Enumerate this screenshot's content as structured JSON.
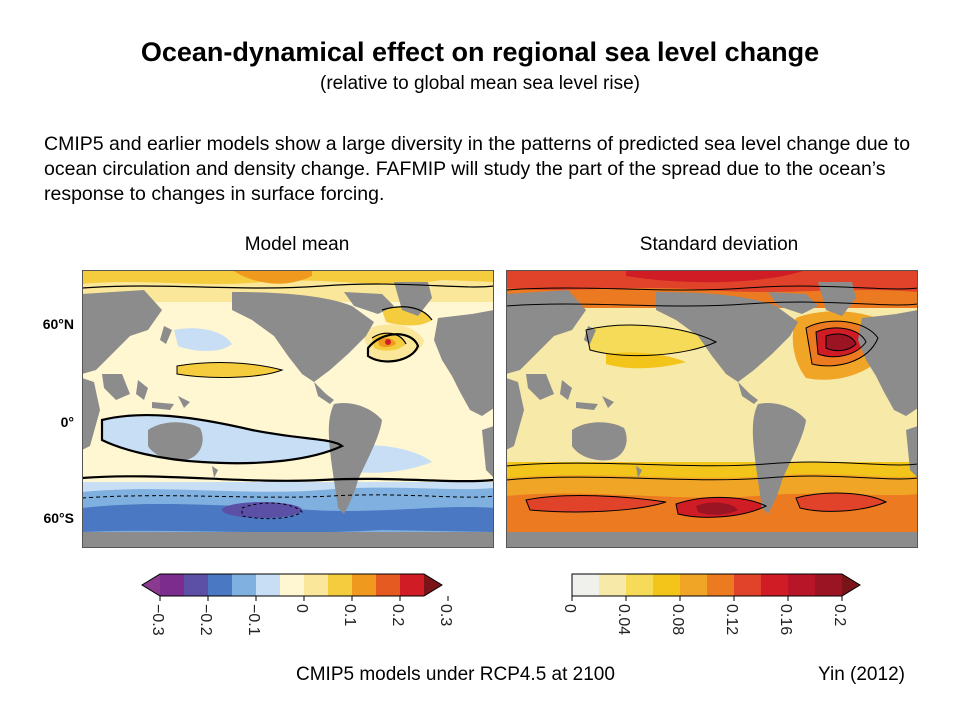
{
  "title": "Ocean-dynamical effect on regional sea level change",
  "subtitle": "(relative to global mean sea level rise)",
  "description": "CMIP5 and earlier models show a large diversity in the patterns of predicted sea level change due to ocean circulation and density change. FAFMIP will study the part of the spread due to the ocean’s response to changes in surface forcing.",
  "panels": {
    "left": {
      "label": "Model mean"
    },
    "right": {
      "label": "Standard deviation"
    }
  },
  "latitude_labels": [
    "60°N",
    "0°",
    "60°S"
  ],
  "colorbars": {
    "mean": {
      "ticks": [
        "−0.3",
        "−0.2",
        "−0.1",
        "0",
        "0.1",
        "0.2",
        "0.3"
      ],
      "colors": [
        "#7b2c8c",
        "#5b4fa6",
        "#4a78c2",
        "#7fb0e0",
        "#c7def5",
        "#fff6d2",
        "#fbe79a",
        "#f5cc3e",
        "#ef9a1e",
        "#e45a20",
        "#d01c24"
      ],
      "under_color": "#8a3a8e",
      "over_color": "#7a1418"
    },
    "std": {
      "ticks": [
        "0",
        "0.04",
        "0.08",
        "0.12",
        "0.16",
        "0.2"
      ],
      "colors": [
        "#f0f0ec",
        "#f7e9a8",
        "#f6db58",
        "#f3c51b",
        "#f0a526",
        "#ec7a20",
        "#e0432a",
        "#d01c24",
        "#b81628",
        "#9a1424"
      ],
      "over_color": "#7a1418"
    }
  },
  "footer": "CMIP5 models under RCP4.5 at 2100",
  "citation": "Yin (2012)",
  "colors": {
    "land": "#8c8c8c",
    "contour": "#000000"
  }
}
